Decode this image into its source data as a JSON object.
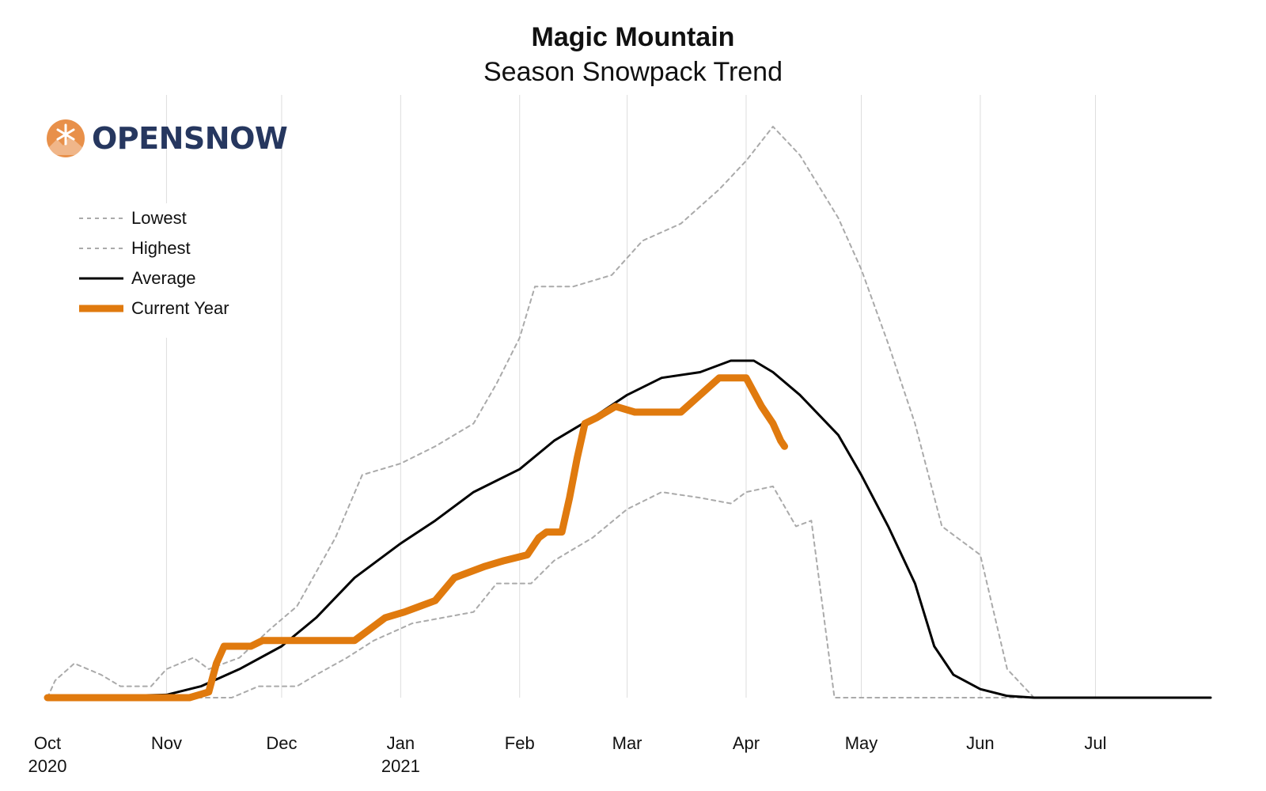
{
  "chart_data": {
    "type": "line",
    "title": "Magic Mountain",
    "subtitle": "Season Snowpack Trend",
    "logo_text": "OPENSNOW",
    "xlim": [
      "2020-10-01",
      "2021-07-31"
    ],
    "ylim": [
      0,
      100
    ],
    "grid": "vertical",
    "x_ticks": [
      {
        "date": "2020-10-01",
        "label": "Oct",
        "sublabel": "2020"
      },
      {
        "date": "2020-11-01",
        "label": "Nov",
        "sublabel": ""
      },
      {
        "date": "2020-12-01",
        "label": "Dec",
        "sublabel": ""
      },
      {
        "date": "2021-01-01",
        "label": "Jan",
        "sublabel": "2021"
      },
      {
        "date": "2021-02-01",
        "label": "Feb",
        "sublabel": ""
      },
      {
        "date": "2021-03-01",
        "label": "Mar",
        "sublabel": ""
      },
      {
        "date": "2021-04-01",
        "label": "Apr",
        "sublabel": ""
      },
      {
        "date": "2021-05-01",
        "label": "May",
        "sublabel": ""
      },
      {
        "date": "2021-06-01",
        "label": "Jun",
        "sublabel": ""
      },
      {
        "date": "2021-07-01",
        "label": "Jul",
        "sublabel": ""
      }
    ],
    "legend_position": "top-left",
    "series": [
      {
        "name": "Lowest",
        "style": "dashed",
        "color": "#aaaaaa",
        "width": 2,
        "points": [
          [
            "2020-10-01",
            0
          ],
          [
            "2020-11-08",
            0
          ],
          [
            "2020-11-18",
            0
          ],
          [
            "2020-11-25",
            2
          ],
          [
            "2020-12-05",
            2
          ],
          [
            "2020-12-10",
            4
          ],
          [
            "2020-12-18",
            7
          ],
          [
            "2020-12-25",
            10
          ],
          [
            "2021-01-04",
            13
          ],
          [
            "2021-01-12",
            14
          ],
          [
            "2021-01-20",
            15
          ],
          [
            "2021-01-26",
            20
          ],
          [
            "2021-02-04",
            20
          ],
          [
            "2021-02-10",
            24
          ],
          [
            "2021-02-20",
            28
          ],
          [
            "2021-03-01",
            33
          ],
          [
            "2021-03-10",
            36
          ],
          [
            "2021-03-20",
            35
          ],
          [
            "2021-03-28",
            34
          ],
          [
            "2021-04-01",
            36
          ],
          [
            "2021-04-08",
            37
          ],
          [
            "2021-04-14",
            30
          ],
          [
            "2021-04-18",
            31
          ],
          [
            "2021-04-24",
            0
          ],
          [
            "2021-05-15",
            0
          ],
          [
            "2021-06-15",
            0
          ],
          [
            "2021-07-31",
            0
          ]
        ]
      },
      {
        "name": "Highest",
        "style": "dashed",
        "color": "#aaaaaa",
        "width": 2,
        "points": [
          [
            "2020-10-01",
            0
          ],
          [
            "2020-10-03",
            3
          ],
          [
            "2020-10-08",
            6
          ],
          [
            "2020-10-15",
            4
          ],
          [
            "2020-10-20",
            2
          ],
          [
            "2020-10-28",
            2
          ],
          [
            "2020-11-01",
            5
          ],
          [
            "2020-11-08",
            7
          ],
          [
            "2020-11-12",
            5
          ],
          [
            "2020-11-20",
            7
          ],
          [
            "2020-11-28",
            12
          ],
          [
            "2020-12-05",
            16
          ],
          [
            "2020-12-10",
            22
          ],
          [
            "2020-12-15",
            28
          ],
          [
            "2020-12-22",
            39
          ],
          [
            "2021-01-01",
            41
          ],
          [
            "2021-01-10",
            44
          ],
          [
            "2021-01-20",
            48
          ],
          [
            "2021-01-26",
            55
          ],
          [
            "2021-02-01",
            63
          ],
          [
            "2021-02-05",
            72
          ],
          [
            "2021-02-15",
            72
          ],
          [
            "2021-02-25",
            74
          ],
          [
            "2021-03-05",
            80
          ],
          [
            "2021-03-15",
            83
          ],
          [
            "2021-03-25",
            89
          ],
          [
            "2021-04-01",
            94
          ],
          [
            "2021-04-08",
            100
          ],
          [
            "2021-04-15",
            95
          ],
          [
            "2021-04-25",
            84
          ],
          [
            "2021-05-01",
            75
          ],
          [
            "2021-05-08",
            62
          ],
          [
            "2021-05-15",
            48
          ],
          [
            "2021-05-22",
            30
          ],
          [
            "2021-06-01",
            25
          ],
          [
            "2021-06-08",
            5
          ],
          [
            "2021-06-15",
            0
          ],
          [
            "2021-07-31",
            0
          ]
        ]
      },
      {
        "name": "Average",
        "style": "solid",
        "color": "#000000",
        "width": 3,
        "points": [
          [
            "2020-10-01",
            0
          ],
          [
            "2020-11-01",
            0.5
          ],
          [
            "2020-11-10",
            2
          ],
          [
            "2020-11-20",
            5
          ],
          [
            "2020-12-01",
            9
          ],
          [
            "2020-12-10",
            14
          ],
          [
            "2020-12-20",
            21
          ],
          [
            "2021-01-01",
            27
          ],
          [
            "2021-01-10",
            31
          ],
          [
            "2021-01-20",
            36
          ],
          [
            "2021-02-01",
            40
          ],
          [
            "2021-02-10",
            45
          ],
          [
            "2021-02-20",
            49
          ],
          [
            "2021-03-01",
            53
          ],
          [
            "2021-03-10",
            56
          ],
          [
            "2021-03-20",
            57
          ],
          [
            "2021-03-28",
            59
          ],
          [
            "2021-04-03",
            59
          ],
          [
            "2021-04-08",
            57
          ],
          [
            "2021-04-15",
            53
          ],
          [
            "2021-04-25",
            46
          ],
          [
            "2021-05-01",
            39
          ],
          [
            "2021-05-08",
            30
          ],
          [
            "2021-05-15",
            20
          ],
          [
            "2021-05-20",
            9
          ],
          [
            "2021-05-25",
            4
          ],
          [
            "2021-06-01",
            1.5
          ],
          [
            "2021-06-08",
            0.3
          ],
          [
            "2021-06-15",
            0
          ],
          [
            "2021-07-31",
            0
          ]
        ]
      },
      {
        "name": "Current Year",
        "style": "solid",
        "color": "#e07a0e",
        "width": 9,
        "points": [
          [
            "2020-10-01",
            0
          ],
          [
            "2020-11-07",
            0
          ],
          [
            "2020-11-12",
            1
          ],
          [
            "2020-11-14",
            6
          ],
          [
            "2020-11-16",
            9
          ],
          [
            "2020-11-23",
            9
          ],
          [
            "2020-11-26",
            10
          ],
          [
            "2020-12-08",
            10
          ],
          [
            "2020-12-12",
            10
          ],
          [
            "2020-12-20",
            10
          ],
          [
            "2020-12-24",
            12
          ],
          [
            "2020-12-28",
            14
          ],
          [
            "2021-01-02",
            15
          ],
          [
            "2021-01-06",
            16
          ],
          [
            "2021-01-10",
            17
          ],
          [
            "2021-01-15",
            21
          ],
          [
            "2021-01-23",
            23
          ],
          [
            "2021-01-28",
            24
          ],
          [
            "2021-02-03",
            25
          ],
          [
            "2021-02-06",
            28
          ],
          [
            "2021-02-08",
            29
          ],
          [
            "2021-02-12",
            29
          ],
          [
            "2021-02-14",
            35
          ],
          [
            "2021-02-16",
            42
          ],
          [
            "2021-02-18",
            48
          ],
          [
            "2021-02-21",
            49
          ],
          [
            "2021-02-26",
            51
          ],
          [
            "2021-03-03",
            50
          ],
          [
            "2021-03-10",
            50
          ],
          [
            "2021-03-15",
            50
          ],
          [
            "2021-03-20",
            53
          ],
          [
            "2021-03-25",
            56
          ],
          [
            "2021-04-01",
            56
          ],
          [
            "2021-04-05",
            51
          ],
          [
            "2021-04-08",
            48
          ],
          [
            "2021-04-10",
            45
          ],
          [
            "2021-04-11",
            44
          ]
        ]
      }
    ]
  }
}
